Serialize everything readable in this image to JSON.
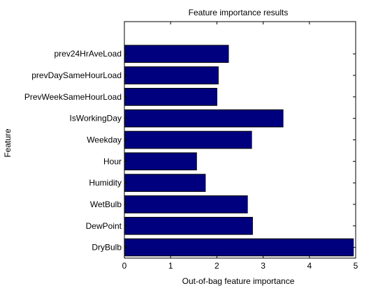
{
  "chart_data": {
    "type": "bar",
    "orientation": "horizontal",
    "title": "Feature importance results",
    "xlabel": "Out-of-bag feature importance",
    "ylabel": "Feature",
    "xlim": [
      0,
      5
    ],
    "xticks": [
      0,
      1,
      2,
      3,
      4,
      5
    ],
    "grid": false,
    "categories": [
      "DryBulb",
      "DewPoint",
      "WetBulb",
      "Humidity",
      "Hour",
      "Weekday",
      "IsWorkingDay",
      "PrevWeekSameHourLoad",
      "prevDaySameHourLoad",
      "prev24HrAveLoad"
    ],
    "values": [
      4.95,
      2.77,
      2.66,
      1.75,
      1.56,
      2.75,
      3.43,
      2.0,
      2.03,
      2.25
    ],
    "bar_color": "#00007f"
  }
}
